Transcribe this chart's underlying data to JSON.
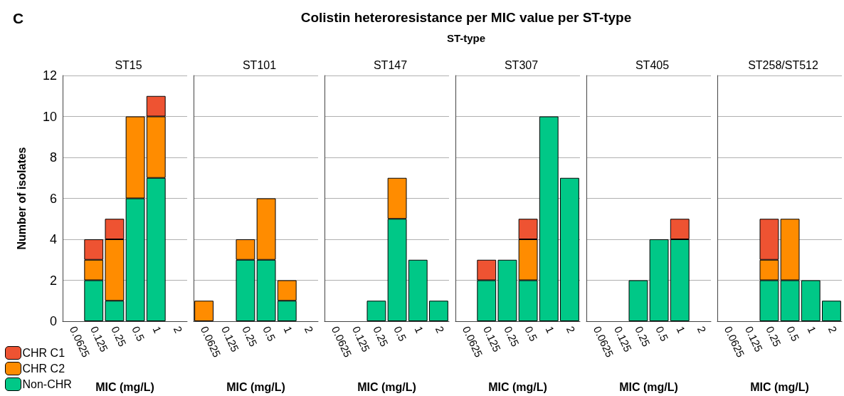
{
  "chart_data": [
    {
      "type": "bar",
      "title": "ST15",
      "xlabel": "MIC (mg/L)",
      "ylabel": "Number of isolates",
      "annotations": [
        "C",
        "Colistin heteroresistance per MIC value per ST-type",
        "ST-type"
      ],
      "categories": [
        "0.0625",
        "0.125",
        "0.25",
        "0.5",
        "1",
        "2"
      ],
      "stacked": true,
      "ylim": [
        0,
        12
      ],
      "yticks": [
        0,
        2,
        4,
        6,
        8,
        10,
        12
      ],
      "grid": "y",
      "legend": "bottom left",
      "series": [
        {
          "name": "Non-CHR",
          "color": "#00c887",
          "values": [
            null,
            2,
            1,
            6,
            7,
            null
          ]
        },
        {
          "name": "CHR C2",
          "color": "#ff8c00",
          "values": [
            null,
            1,
            3,
            4,
            3,
            null
          ]
        },
        {
          "name": "CHR C1",
          "color": "#ee5332",
          "values": [
            null,
            1,
            1,
            null,
            1,
            null
          ]
        }
      ]
    },
    {
      "type": "bar",
      "title": "ST101",
      "xlabel": "MIC (mg/L)",
      "categories": [
        "0.0625",
        "0.125",
        "0.25",
        "0.5",
        "1",
        "2"
      ],
      "stacked": true,
      "ylim": [
        0,
        12
      ],
      "yticks": [
        0,
        2,
        4,
        6,
        8,
        10,
        12
      ],
      "grid": "y",
      "tick_labels": "x",
      "series": [
        {
          "color": "#00c887",
          "values": [
            null,
            null,
            3,
            3,
            1,
            null
          ]
        },
        {
          "color": "#ff8c00",
          "values": [
            1,
            null,
            1,
            3,
            1,
            null
          ]
        }
      ]
    },
    {
      "type": "bar",
      "title": "ST147",
      "xlabel": "MIC (mg/L)",
      "categories": [
        "0.0625",
        "0.125",
        "0.25",
        "0.5",
        "1",
        "2"
      ],
      "stacked": true,
      "ylim": [
        0,
        12
      ],
      "yticks": [
        0,
        2,
        4,
        6,
        8,
        10,
        12
      ],
      "grid": "y",
      "tick_labels": "x",
      "series": [
        {
          "color": "#00c887",
          "values": [
            null,
            null,
            1,
            5,
            3,
            1
          ]
        },
        {
          "color": "#ff8c00",
          "values": [
            null,
            null,
            null,
            2,
            null,
            null
          ]
        }
      ]
    },
    {
      "type": "bar",
      "title": "ST307",
      "xlabel": "MIC (mg/L)",
      "categories": [
        "0.0625",
        "0.125",
        "0.25",
        "0.5",
        "1",
        "2"
      ],
      "stacked": true,
      "ylim": [
        0,
        12
      ],
      "yticks": [
        0,
        2,
        4,
        6,
        8,
        10,
        12
      ],
      "grid": "y",
      "tick_labels": "x",
      "series": [
        {
          "color": "#00c887",
          "values": [
            null,
            2,
            3,
            2,
            10,
            7
          ]
        },
        {
          "color": "#ff8c00",
          "values": [
            null,
            null,
            null,
            2,
            null,
            null
          ]
        },
        {
          "color": "#ee5332",
          "values": [
            null,
            1,
            null,
            1,
            null,
            null
          ]
        }
      ]
    },
    {
      "type": "bar",
      "title": "ST405",
      "xlabel": "MIC (mg/L)",
      "categories": [
        "0.0625",
        "0.125",
        "0.25",
        "0.5",
        "1",
        "2"
      ],
      "stacked": true,
      "ylim": [
        0,
        12
      ],
      "yticks": [
        0,
        2,
        4,
        6,
        8,
        10,
        12
      ],
      "grid": "y",
      "tick_labels": "x",
      "series": [
        {
          "color": "#00c887",
          "values": [
            null,
            null,
            2,
            4,
            4,
            null
          ]
        },
        {
          "color": "#ee5332",
          "values": [
            null,
            null,
            null,
            null,
            1,
            null
          ]
        }
      ]
    },
    {
      "type": "bar",
      "title": "ST258/ST512",
      "xlabel": "MIC (mg/L)",
      "categories": [
        "0.0625",
        "0.125",
        "0.25",
        "0.5",
        "1",
        "2"
      ],
      "stacked": true,
      "ylim": [
        0,
        12
      ],
      "yticks": [
        0,
        2,
        4,
        6,
        8,
        10,
        12
      ],
      "grid": "y",
      "tick_labels": "x",
      "series": [
        {
          "color": "#00c887",
          "values": [
            null,
            null,
            2,
            2,
            2,
            1
          ]
        },
        {
          "color": "#ff8c00",
          "values": [
            null,
            null,
            1,
            3,
            null,
            null
          ]
        },
        {
          "color": "#ee5332",
          "values": [
            null,
            null,
            2,
            null,
            null,
            null
          ]
        }
      ]
    }
  ]
}
